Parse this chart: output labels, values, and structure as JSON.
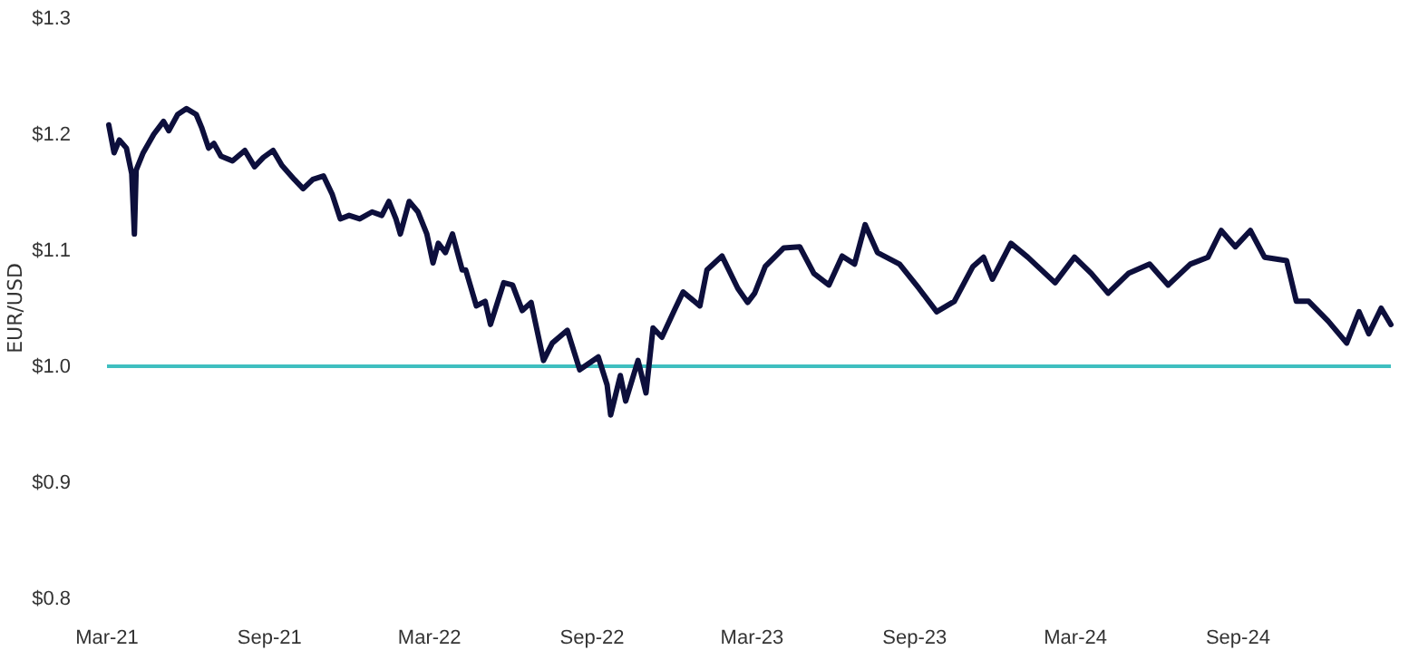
{
  "chart_data": {
    "type": "line",
    "ylabel": "EUR/USD",
    "x": [
      "2021-03-03",
      "2021-03-09",
      "2021-03-15",
      "2021-03-23",
      "2021-03-29",
      "2021-04-01",
      "2021-04-03",
      "2021-04-11",
      "2021-04-23",
      "2021-05-04",
      "2021-05-10",
      "2021-05-20",
      "2021-05-30",
      "2021-06-10",
      "2021-06-16",
      "2021-06-24",
      "2021-06-30",
      "2021-07-08",
      "2021-07-21",
      "2021-08-04",
      "2021-08-15",
      "2021-08-25",
      "2021-09-05",
      "2021-09-15",
      "2021-09-29",
      "2021-10-09",
      "2021-10-20",
      "2021-11-01",
      "2021-11-11",
      "2021-11-20",
      "2021-11-30",
      "2021-12-12",
      "2021-12-26",
      "2022-01-06",
      "2022-01-14",
      "2022-01-22",
      "2022-01-27",
      "2022-02-06",
      "2022-02-16",
      "2022-02-26",
      "2022-03-05",
      "2022-03-11",
      "2022-03-19",
      "2022-03-27",
      "2022-04-07",
      "2022-04-11",
      "2022-04-23",
      "2022-05-03",
      "2022-05-09",
      "2022-05-24",
      "2022-06-03",
      "2022-06-14",
      "2022-06-24",
      "2022-07-08",
      "2022-07-18",
      "2022-08-04",
      "2022-08-18",
      "2022-09-08",
      "2022-09-18",
      "2022-09-22",
      "2022-10-03",
      "2022-10-09",
      "2022-10-23",
      "2022-11-01",
      "2022-11-09",
      "2022-11-19",
      "2022-12-03",
      "2022-12-13",
      "2023-01-01",
      "2023-01-09",
      "2023-01-26",
      "2023-02-13",
      "2023-02-24",
      "2023-03-04",
      "2023-03-16",
      "2023-04-06",
      "2023-04-24",
      "2023-05-10",
      "2023-05-27",
      "2023-06-11",
      "2023-06-25",
      "2023-07-07",
      "2023-07-21",
      "2023-08-15",
      "2023-09-06",
      "2023-09-26",
      "2023-10-16",
      "2023-11-06",
      "2023-11-18",
      "2023-11-28",
      "2023-12-19",
      "2024-01-07",
      "2024-02-07",
      "2024-02-29",
      "2024-03-19",
      "2024-04-07",
      "2024-04-30",
      "2024-05-24",
      "2024-06-14",
      "2024-07-09",
      "2024-07-29",
      "2024-08-13",
      "2024-08-29",
      "2024-09-15",
      "2024-10-01",
      "2024-10-26",
      "2024-11-06",
      "2024-11-20",
      "2024-12-12",
      "2025-01-02",
      "2025-01-16",
      "2025-01-27",
      "2025-02-10",
      "2025-02-21"
    ],
    "series": [
      {
        "color": "#0d0f3c",
        "values": [
          1.208,
          1.184,
          1.195,
          1.188,
          1.166,
          1.114,
          1.169,
          1.184,
          1.2,
          1.211,
          1.203,
          1.217,
          1.222,
          1.217,
          1.206,
          1.188,
          1.192,
          1.181,
          1.177,
          1.186,
          1.172,
          1.18,
          1.186,
          1.173,
          1.161,
          1.153,
          1.161,
          1.164,
          1.148,
          1.127,
          1.13,
          1.127,
          1.133,
          1.13,
          1.142,
          1.127,
          1.114,
          1.142,
          1.133,
          1.114,
          1.089,
          1.106,
          1.098,
          1.114,
          1.083,
          1.083,
          1.052,
          1.056,
          1.036,
          1.072,
          1.07,
          1.048,
          1.055,
          1.005,
          1.02,
          1.031,
          0.997,
          1.008,
          0.984,
          0.958,
          0.992,
          0.97,
          1.005,
          0.977,
          1.033,
          1.025,
          1.048,
          1.064,
          1.052,
          1.083,
          1.095,
          1.067,
          1.055,
          1.063,
          1.086,
          1.102,
          1.103,
          1.08,
          1.07,
          1.095,
          1.088,
          1.122,
          1.098,
          1.088,
          1.067,
          1.047,
          1.056,
          1.086,
          1.094,
          1.075,
          1.106,
          1.094,
          1.072,
          1.094,
          1.08,
          1.063,
          1.08,
          1.088,
          1.07,
          1.088,
          1.094,
          1.117,
          1.103,
          1.117,
          1.094,
          1.091,
          1.056,
          1.056,
          1.039,
          1.02,
          1.047,
          1.028,
          1.05,
          1.036
        ]
      }
    ],
    "xlim": [
      "2021-03-01",
      "2025-02-21"
    ],
    "xticks": [
      {
        "value": "2021-03-01",
        "label": "Mar-21"
      },
      {
        "value": "2021-09-01",
        "label": "Sep-21"
      },
      {
        "value": "2022-03-01",
        "label": "Mar-22"
      },
      {
        "value": "2022-09-01",
        "label": "Sep-22"
      },
      {
        "value": "2023-03-01",
        "label": "Mar-23"
      },
      {
        "value": "2023-09-01",
        "label": "Sep-23"
      },
      {
        "value": "2024-03-01",
        "label": "Mar-24"
      },
      {
        "value": "2024-09-01",
        "label": "Sep-24"
      }
    ],
    "ylim": [
      0.8,
      1.3
    ],
    "yticks": [
      {
        "value": 0.8,
        "label": "$0.8"
      },
      {
        "value": 0.9,
        "label": "$0.9"
      },
      {
        "value": 1.0,
        "label": "$1.0"
      },
      {
        "value": 1.1,
        "label": "$1.1"
      },
      {
        "value": 1.2,
        "label": "$1.2"
      },
      {
        "value": 1.3,
        "label": "$1.3"
      }
    ],
    "ref_lines": [
      {
        "axis": "y",
        "value": 1.0,
        "color": "#3fbfc0"
      }
    ],
    "grid": false,
    "marker": "none",
    "line_style": "solid"
  }
}
